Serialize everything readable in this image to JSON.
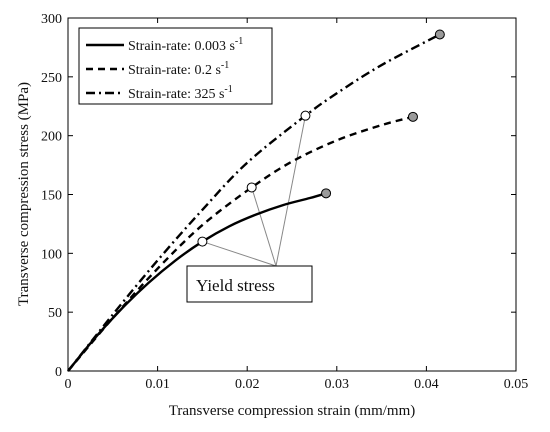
{
  "chart_data": {
    "type": "line",
    "xlabel": "Transverse compression strain (mm/mm)",
    "ylabel": "Transverse compression stress (MPa)",
    "xlim": [
      0,
      0.05
    ],
    "ylim": [
      0,
      300
    ],
    "xticks": [
      0,
      0.01,
      0.02,
      0.03,
      0.04,
      0.05
    ],
    "xtick_labels": [
      "0",
      "0.01",
      "0.02",
      "0.03",
      "0.04",
      "0.05"
    ],
    "yticks": [
      0,
      50,
      100,
      150,
      200,
      250,
      300
    ],
    "ytick_labels": [
      "0",
      "50",
      "100",
      "150",
      "200",
      "250",
      "300"
    ],
    "grid": false,
    "legend_position": "top-left",
    "series": [
      {
        "name": "Strain-rate: 0.003 s",
        "unit_exponent": "-1",
        "style": "solid",
        "color": "#000000",
        "points": [
          [
            0,
            0
          ],
          [
            0.003,
            28
          ],
          [
            0.006,
            53
          ],
          [
            0.009,
            75
          ],
          [
            0.012,
            94
          ],
          [
            0.015,
            110
          ],
          [
            0.018,
            123
          ],
          [
            0.021,
            133
          ],
          [
            0.024,
            141
          ],
          [
            0.027,
            147
          ],
          [
            0.0288,
            151
          ]
        ],
        "yield_point": [
          0.015,
          110
        ],
        "end_point": [
          0.0288,
          151
        ]
      },
      {
        "name": "Strain-rate: 0.2 s",
        "unit_exponent": "-1",
        "style": "dashed",
        "color": "#000000",
        "points": [
          [
            0,
            0
          ],
          [
            0.005,
            45
          ],
          [
            0.01,
            87
          ],
          [
            0.015,
            124
          ],
          [
            0.0205,
            156
          ],
          [
            0.025,
            178
          ],
          [
            0.03,
            196
          ],
          [
            0.035,
            209
          ],
          [
            0.0385,
            216
          ]
        ],
        "yield_point": [
          0.0205,
          156
        ],
        "end_point": [
          0.0385,
          216
        ]
      },
      {
        "name": "Strain-rate: 325 s",
        "unit_exponent": "-1",
        "style": "dash-dot",
        "color": "#000000",
        "points": [
          [
            0,
            0
          ],
          [
            0.005,
            48
          ],
          [
            0.01,
            94
          ],
          [
            0.015,
            137
          ],
          [
            0.02,
            177
          ],
          [
            0.0265,
            217
          ],
          [
            0.03,
            236
          ],
          [
            0.035,
            260
          ],
          [
            0.0415,
            286
          ]
        ],
        "yield_point": [
          0.0265,
          217
        ],
        "end_point": [
          0.0415,
          286
        ]
      }
    ],
    "annotation": {
      "text": "Yield stress"
    },
    "colors": {
      "line": "#000000",
      "end_marker_fill": "#9a9a9a",
      "yield_marker_fill": "#ffffff",
      "pointer_lines": "#888888"
    }
  }
}
